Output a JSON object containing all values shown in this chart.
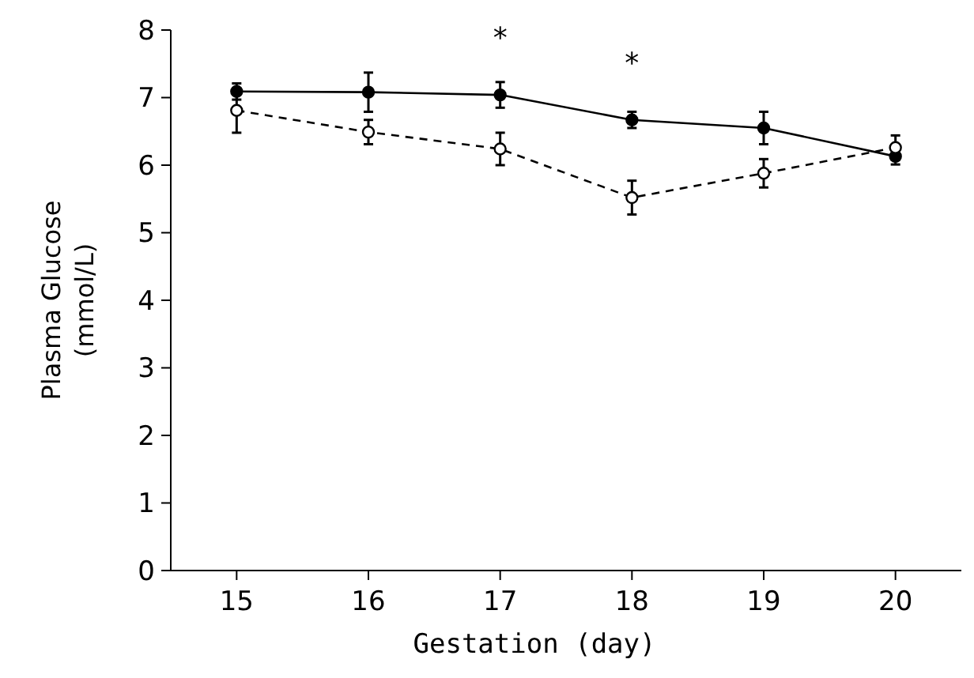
{
  "chart_data": {
    "type": "line",
    "xlabel": "Gestation (day)",
    "ylabel": "Plasma Glucose\n(mmol/L)",
    "x": [
      15,
      16,
      17,
      18,
      19,
      20
    ],
    "xlim": [
      14.5,
      20.5
    ],
    "xticks": [
      15,
      16,
      17,
      18,
      19,
      20
    ],
    "ylim": [
      0,
      8
    ],
    "yticks": [
      0,
      1,
      2,
      3,
      4,
      5,
      6,
      7,
      8
    ],
    "marker": "circle",
    "grid": false,
    "series": [
      {
        "color": "#000000",
        "line_style": "solid",
        "values": [
          7.09,
          7.08,
          7.04,
          6.67,
          6.55,
          6.13
        ],
        "errors": [
          0.12,
          0.29,
          0.19,
          0.12,
          0.24,
          0.12
        ]
      },
      {
        "color": "#000000",
        "line_style": "dashed",
        "values": [
          6.81,
          6.49,
          6.24,
          5.52,
          5.88,
          6.26
        ],
        "errors": [
          0.33,
          0.18,
          0.24,
          0.25,
          0.21,
          0.18
        ]
      }
    ],
    "annotations": [
      {
        "text": "*",
        "x": 17,
        "y": 7.04
      },
      {
        "text": "*",
        "x": 18,
        "y": 6.67
      }
    ]
  }
}
